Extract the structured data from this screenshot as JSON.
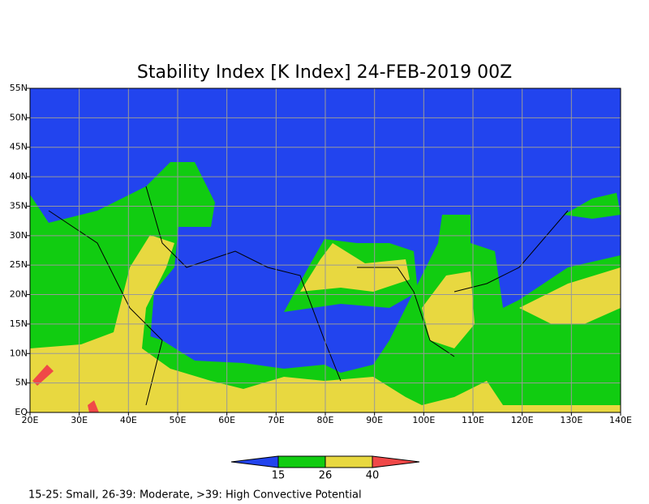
{
  "map": {
    "title": "Stability Index [K Index] 24-FEB-2019 00Z",
    "xlim": [
      20,
      140
    ],
    "ylim": [
      0,
      55
    ],
    "xticks": [
      {
        "value": 20,
        "label": "20E"
      },
      {
        "value": 30,
        "label": "30E"
      },
      {
        "value": 40,
        "label": "40E"
      },
      {
        "value": 50,
        "label": "50E"
      },
      {
        "value": 60,
        "label": "60E"
      },
      {
        "value": 70,
        "label": "70E"
      },
      {
        "value": 80,
        "label": "80E"
      },
      {
        "value": 90,
        "label": "90E"
      },
      {
        "value": 100,
        "label": "100E"
      },
      {
        "value": 110,
        "label": "110E"
      },
      {
        "value": 120,
        "label": "120E"
      },
      {
        "value": 130,
        "label": "130E"
      },
      {
        "value": 140,
        "label": "140E"
      }
    ],
    "yticks": [
      {
        "value": 0,
        "label": "EQ"
      },
      {
        "value": 5,
        "label": "5N"
      },
      {
        "value": 10,
        "label": "10N"
      },
      {
        "value": 15,
        "label": "15N"
      },
      {
        "value": 20,
        "label": "20N"
      },
      {
        "value": 25,
        "label": "25N"
      },
      {
        "value": 30,
        "label": "30N"
      },
      {
        "value": 35,
        "label": "35N"
      },
      {
        "value": 40,
        "label": "40N"
      },
      {
        "value": 45,
        "label": "45N"
      },
      {
        "value": 50,
        "label": "50N"
      },
      {
        "value": 55,
        "label": "55N"
      }
    ],
    "grid": true
  },
  "colorbar": {
    "levels": [
      15,
      26,
      40
    ],
    "colors": [
      "#2244ee",
      "#11cc11",
      "#e8d840",
      "#f04848"
    ]
  },
  "footer": "15-25: Small, 26-39: Moderate, >39: High Convective Potential"
}
